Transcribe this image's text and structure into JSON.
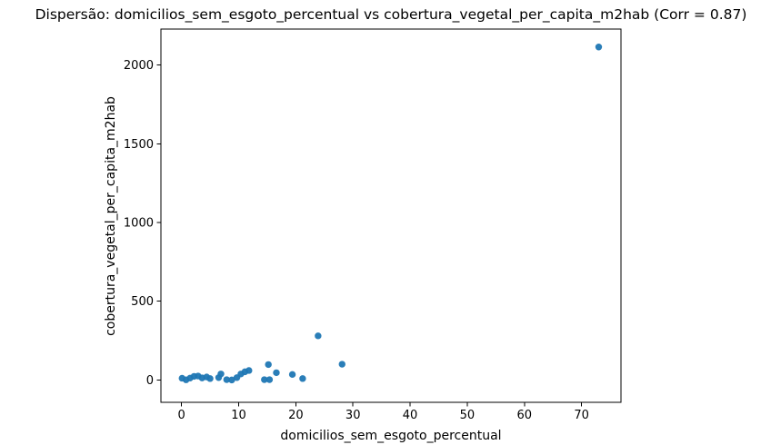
{
  "figure": {
    "background": "#ffffff",
    "text_color": "#000000",
    "spine_color": "#000000"
  },
  "chart_data": {
    "type": "scatter",
    "title": "Dispersão: domicilios_sem_esgoto_percentual vs cobertura_vegetal_per_capita_m2hab (Corr = 0.87)",
    "xlabel": "domicilios_sem_esgoto_percentual",
    "ylabel": "cobertura_vegetal_per_capita_m2hab",
    "correlation": 0.87,
    "marker_color": "#1f77b4",
    "grid": false,
    "legend_position": "none",
    "xlim": [
      -3.6,
      76.9
    ],
    "ylim": [
      -142,
      2229
    ],
    "xticks": [
      0,
      10,
      20,
      30,
      40,
      50,
      60,
      70
    ],
    "yticks": [
      0,
      500,
      1000,
      1500,
      2000
    ],
    "points": [
      [
        0.1,
        11
      ],
      [
        0.8,
        1
      ],
      [
        1.5,
        12
      ],
      [
        2.2,
        23
      ],
      [
        2.9,
        25
      ],
      [
        3.6,
        13
      ],
      [
        4.4,
        19
      ],
      [
        5.0,
        9
      ],
      [
        6.5,
        15
      ],
      [
        6.9,
        38
      ],
      [
        7.9,
        2
      ],
      [
        8.8,
        0
      ],
      [
        9.7,
        15
      ],
      [
        10.4,
        38
      ],
      [
        11.1,
        52
      ],
      [
        11.8,
        60
      ],
      [
        14.5,
        2
      ],
      [
        15.4,
        2
      ],
      [
        15.2,
        98
      ],
      [
        16.6,
        46
      ],
      [
        19.4,
        35
      ],
      [
        21.2,
        9
      ],
      [
        23.9,
        280
      ],
      [
        28.1,
        100
      ],
      [
        73.0,
        2115
      ]
    ]
  }
}
